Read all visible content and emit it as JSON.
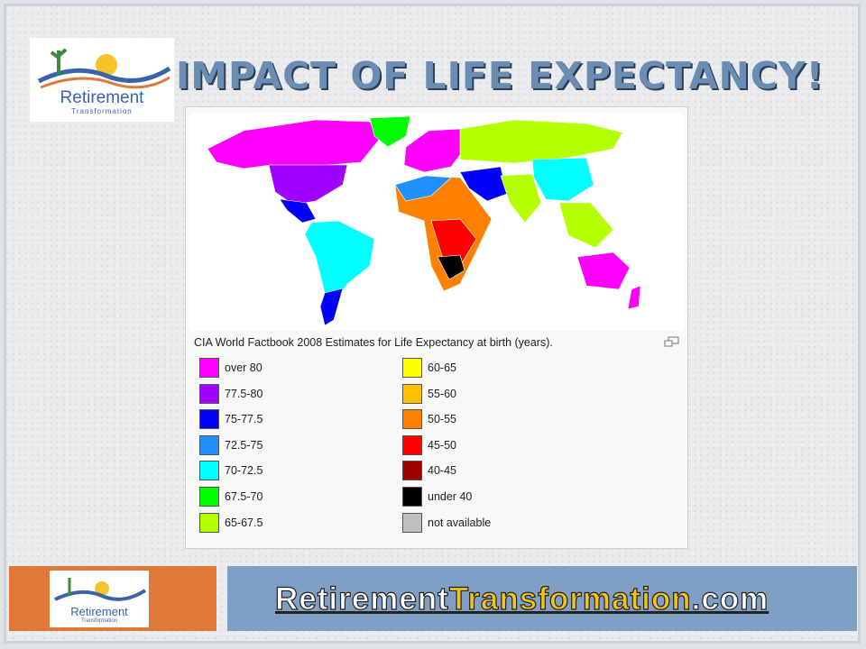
{
  "header": {
    "logo": {
      "name": "Retirement",
      "tagline": "Transformation"
    },
    "title": "IMPACT OF LIFE EXPECTANCY!"
  },
  "map": {
    "caption": "CIA World Factbook 2008 Estimates for Life Expectancy at birth (years).",
    "legend": [
      {
        "label": "over 80",
        "color": "#ff00ff"
      },
      {
        "label": "77.5-80",
        "color": "#a000ff"
      },
      {
        "label": "75-77.5",
        "color": "#0000ff"
      },
      {
        "label": "72.5-75",
        "color": "#1e90ff"
      },
      {
        "label": "70-72.5",
        "color": "#00ffff"
      },
      {
        "label": "67.5-70",
        "color": "#00ff00"
      },
      {
        "label": "65-67.5",
        "color": "#b4ff00"
      },
      {
        "label": "60-65",
        "color": "#ffff00"
      },
      {
        "label": "55-60",
        "color": "#ffc000"
      },
      {
        "label": "50-55",
        "color": "#ff8000"
      },
      {
        "label": "45-50",
        "color": "#ff0000"
      },
      {
        "label": "40-45",
        "color": "#a00000"
      },
      {
        "label": "under 40",
        "color": "#000000"
      },
      {
        "label": "not available",
        "color": "#c0c0c0"
      }
    ]
  },
  "footer": {
    "logo": {
      "name": "Retirement",
      "tagline": "Transformation"
    },
    "site": [
      "Retirement",
      "Transformation",
      ".com"
    ]
  }
}
